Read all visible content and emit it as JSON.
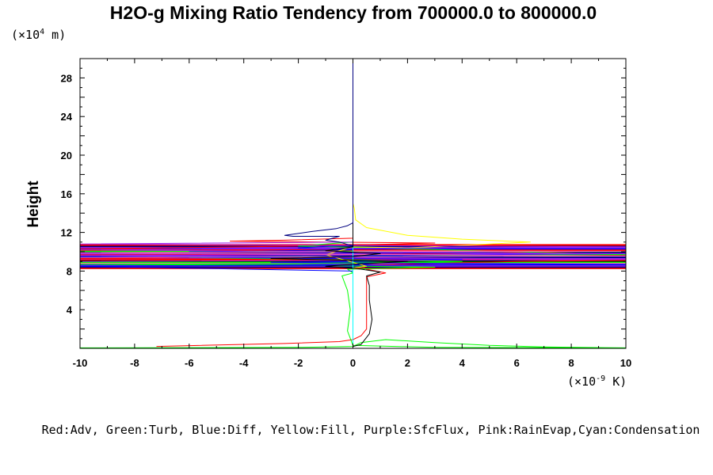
{
  "chart_data": {
    "type": "line",
    "title": "H2O-g Mixing Ratio Tendency from 700000.0 to 800000.0",
    "ylabel": "Height",
    "xlabel": "",
    "y_unit": {
      "prefix": "(×10",
      "exponent": "4",
      "suffix": " m)"
    },
    "x_unit": {
      "prefix": "(×10",
      "exponent": "-9",
      "suffix": " K)"
    },
    "xlim": [
      -10,
      10
    ],
    "ylim": [
      0,
      30
    ],
    "x_ticks": [
      "-10",
      "-8",
      "-6",
      "-4",
      "-2",
      "0",
      "2",
      "4",
      "6",
      "8",
      "10"
    ],
    "y_ticks": [
      "4",
      "8",
      "12",
      "16",
      "20",
      "24",
      "28"
    ],
    "legend_text": "Red:Adv, Green:Turb, Blue:Diff, Yellow:Fill, Purple:SfcFlux, Pink:RainEvap,Cyan:Condensation",
    "legend_placement": "bottom",
    "grid": false,
    "colors": {
      "adv": "#ff0000",
      "turb": "#00ff00",
      "diff": "#0000ff",
      "fill": "#ffff00",
      "sfcflux": "#a020f0",
      "rainevap": "#ff69b4",
      "condensation": "#00ffff",
      "total": "#000000",
      "navy": "#000080"
    },
    "series": [
      {
        "name": "Red:Adv",
        "color": "#ff0000",
        "points": [
          [
            -7.2,
            0.2
          ],
          [
            -2.5,
            0.5
          ],
          [
            -0.5,
            0.7
          ],
          [
            0,
            0.9
          ],
          [
            0.3,
            1.3
          ],
          [
            0.5,
            2
          ],
          [
            0.5,
            4
          ],
          [
            0.5,
            6
          ],
          [
            0.5,
            7.4
          ],
          [
            1.2,
            7.8
          ],
          [
            0.5,
            8.2
          ],
          [
            0.3,
            8.6
          ],
          [
            3,
            8.8
          ],
          [
            6,
            9
          ],
          [
            10,
            9.1
          ],
          [
            -10,
            9.3
          ],
          [
            -3,
            9.5
          ],
          [
            0,
            9.7
          ],
          [
            5,
            9.9
          ],
          [
            10,
            10.1
          ],
          [
            -10,
            10.3
          ],
          [
            -4,
            10.5
          ],
          [
            0,
            10.7
          ],
          [
            3,
            10.9
          ],
          [
            -4.5,
            11.1
          ],
          [
            -2.5,
            11.2
          ],
          [
            0,
            11.4
          ],
          [
            0,
            30
          ]
        ]
      },
      {
        "name": "Green:Turb",
        "color": "#00ff00",
        "points": [
          [
            -10,
            0.05
          ],
          [
            -2,
            0.1
          ],
          [
            0,
            0.2
          ],
          [
            0.3,
            0.6
          ],
          [
            1.2,
            0.9
          ],
          [
            3,
            0.6
          ],
          [
            5,
            0.3
          ],
          [
            7,
            0.15
          ],
          [
            10,
            0.05
          ],
          [
            3,
            0.1
          ],
          [
            0,
            0.3
          ],
          [
            -0.2,
            1.8
          ],
          [
            -0.1,
            4
          ],
          [
            -0.2,
            6
          ],
          [
            -0.4,
            7.5
          ],
          [
            0,
            7.8
          ],
          [
            -0.2,
            8.2
          ],
          [
            3,
            8.4
          ],
          [
            -2,
            8.6
          ],
          [
            -10,
            8.7
          ],
          [
            0,
            8.8
          ],
          [
            4,
            9
          ],
          [
            -6,
            9.4
          ],
          [
            0,
            9.6
          ],
          [
            10,
            9.7
          ],
          [
            2,
            10.3
          ],
          [
            -2,
            10.6
          ],
          [
            0,
            11
          ],
          [
            0,
            12
          ],
          [
            0,
            30
          ]
        ]
      },
      {
        "name": "Blue:Diff",
        "color": "#0000ff",
        "points": [
          [
            0,
            0
          ],
          [
            0,
            2
          ],
          [
            0,
            8
          ],
          [
            -10,
            8.5
          ],
          [
            10,
            8.7
          ],
          [
            -3,
            8.9
          ],
          [
            0,
            9
          ],
          [
            4,
            9.2
          ],
          [
            -10,
            9.5
          ],
          [
            0,
            9.6
          ],
          [
            10,
            9.8
          ],
          [
            -6,
            10
          ],
          [
            0,
            10.2
          ],
          [
            -2,
            10.4
          ],
          [
            0,
            10.7
          ],
          [
            0,
            30
          ]
        ]
      },
      {
        "name": "Yellow:Fill",
        "color": "#ffff00",
        "points": [
          [
            0,
            8.3
          ],
          [
            0.5,
            8.5
          ],
          [
            -1,
            9.7
          ],
          [
            0,
            10.5
          ],
          [
            2,
            10.4
          ],
          [
            5,
            10.8
          ],
          [
            6.5,
            11
          ],
          [
            4,
            11.3
          ],
          [
            2,
            11.7
          ],
          [
            0.5,
            12.5
          ],
          [
            0.1,
            13.3
          ],
          [
            0.05,
            14.5
          ],
          [
            0,
            15
          ],
          [
            0,
            30
          ]
        ]
      },
      {
        "name": "Purple:SfcFlux",
        "color": "#a020f0",
        "points": [
          [
            -10,
            9
          ],
          [
            10,
            9.2
          ],
          [
            -10,
            9.6
          ],
          [
            10,
            9.8
          ],
          [
            -10,
            10.2
          ],
          [
            10,
            10.5
          ],
          [
            -10,
            10.8
          ],
          [
            0,
            11
          ],
          [
            0,
            30
          ]
        ]
      },
      {
        "name": "Pink:RainEvap",
        "color": "#ff69b4",
        "points": [
          [
            -10,
            9.4
          ],
          [
            -5,
            9.45
          ],
          [
            2,
            9.5
          ],
          [
            10,
            9.55
          ],
          [
            -10,
            9.9
          ],
          [
            0,
            10
          ],
          [
            10,
            10.05
          ],
          [
            0,
            10.1
          ],
          [
            0,
            30
          ]
        ]
      },
      {
        "name": "Cyan:Condensation",
        "color": "#00ffff",
        "points": [
          [
            0,
            0
          ],
          [
            0,
            30
          ]
        ]
      },
      {
        "name": "",
        "color": "#000000",
        "points": [
          [
            0,
            0.2
          ],
          [
            0.3,
            0.4
          ],
          [
            0.6,
            1.5
          ],
          [
            0.7,
            3
          ],
          [
            0.6,
            5
          ],
          [
            0.6,
            6.5
          ],
          [
            0.5,
            7.5
          ],
          [
            1,
            7.9
          ],
          [
            0.3,
            8.2
          ],
          [
            -1,
            8.5
          ],
          [
            0,
            8.7
          ],
          [
            2,
            9
          ],
          [
            -3,
            9.3
          ],
          [
            0,
            9.5
          ],
          [
            1,
            9.8
          ],
          [
            -1,
            10.1
          ],
          [
            0,
            10.5
          ],
          [
            0,
            30
          ]
        ]
      },
      {
        "name": "",
        "color": "#000080",
        "points": [
          [
            0,
            10.6
          ],
          [
            -0.5,
            11
          ],
          [
            -1,
            11.2
          ],
          [
            -0.5,
            11.6
          ],
          [
            -2.2,
            11.6
          ],
          [
            -2.5,
            11.7
          ],
          [
            -1.5,
            12.1
          ],
          [
            -0.6,
            12.4
          ],
          [
            -0.2,
            12.7
          ],
          [
            0,
            13
          ],
          [
            0,
            13.5
          ],
          [
            0,
            30
          ]
        ]
      }
    ],
    "band": {
      "colors": [
        "#ff0000",
        "#000080",
        "#a020f0",
        "#0000ff",
        "#ff69b4",
        "#00ff00",
        "#000000",
        "#ff0000",
        "#a020f0",
        "#000080",
        "#0000ff",
        "#ff0000",
        "#a020f0",
        "#000080",
        "#00ff00",
        "#ff0000",
        "#0000ff",
        "#a020f0",
        "#000080",
        "#ff0000"
      ],
      "y_range": [
        8.3,
        10.7
      ]
    }
  }
}
